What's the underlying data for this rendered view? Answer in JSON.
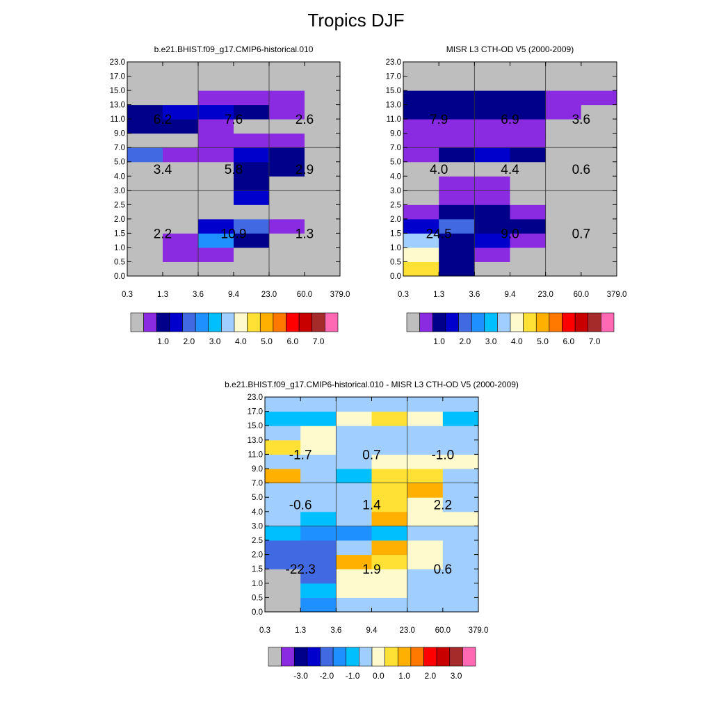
{
  "title": "Tropics DJF",
  "colors": {
    "model": [
      "#bebebe",
      "#8a2be2",
      "#00008b",
      "#0000cd",
      "#4169e1",
      "#1e90ff",
      "#00bfff",
      "#a0cfff",
      "#fffacd",
      "#ffe135",
      "#ffb000",
      "#ff7800",
      "#ff0000",
      "#c80000",
      "#a52a2a",
      "#ff69b4"
    ],
    "diff": [
      "#bebebe",
      "#8a2be2",
      "#00008b",
      "#0000cd",
      "#4169e1",
      "#1e90ff",
      "#00bfff",
      "#a0cfff",
      "#fffacd",
      "#ffe135",
      "#ffb000",
      "#ff7800",
      "#ff0000",
      "#c80000",
      "#a52a2a",
      "#ff69b4"
    ]
  },
  "chart_data": [
    {
      "type": "heatmap",
      "title": "b.e21.BHIST.f09_g17.CMIP6-historical.010",
      "x_ticks": [
        "0.3",
        "1.3",
        "3.6",
        "9.4",
        "23.0",
        "60.0",
        "379.0"
      ],
      "y_ticks": [
        "0.0",
        "0.5",
        "1.0",
        "1.5",
        "2.0",
        "2.5",
        "3.0",
        "4.0",
        "5.0",
        "7.0",
        "9.0",
        "11.0",
        "13.0",
        "15.0",
        "17.0",
        "23.0"
      ],
      "grid": {
        "x_lines": [
          2,
          4
        ],
        "y_lines": [
          6,
          9
        ]
      },
      "cells": [
        [
          0,
          0,
          0,
          0,
          0,
          0
        ],
        [
          0,
          1,
          1,
          0,
          0,
          0
        ],
        [
          0,
          1,
          5,
          2,
          0,
          0
        ],
        [
          0,
          0,
          3,
          4,
          1,
          0
        ],
        [
          0,
          0,
          0,
          0,
          0,
          0
        ],
        [
          0,
          0,
          0,
          3,
          0,
          0
        ],
        [
          0,
          0,
          0,
          2,
          0,
          0
        ],
        [
          0,
          0,
          0,
          2,
          2,
          0
        ],
        [
          4,
          1,
          1,
          3,
          2,
          0
        ],
        [
          0,
          0,
          1,
          1,
          1,
          0
        ],
        [
          2,
          2,
          1,
          0,
          0,
          0
        ],
        [
          2,
          3,
          3,
          2,
          1,
          0
        ],
        [
          0,
          0,
          1,
          1,
          1,
          0
        ],
        [
          0,
          0,
          0,
          0,
          0,
          0
        ],
        [
          0,
          0,
          0,
          0,
          0,
          0
        ]
      ],
      "region_labels": [
        {
          "col": 0,
          "row": 0,
          "text": "2.2"
        },
        {
          "col": 1,
          "row": 0,
          "text": "10.9"
        },
        {
          "col": 2,
          "row": 0,
          "text": "1.3"
        },
        {
          "col": 0,
          "row": 1,
          "text": "3.4"
        },
        {
          "col": 1,
          "row": 1,
          "text": "5.8"
        },
        {
          "col": 2,
          "row": 1,
          "text": "2.9"
        },
        {
          "col": 0,
          "row": 2,
          "text": "6.2"
        },
        {
          "col": 1,
          "row": 2,
          "text": "7.6"
        },
        {
          "col": 2,
          "row": 2,
          "text": "2.6"
        }
      ],
      "colorbar_labels": [
        "1.0",
        "2.0",
        "3.0",
        "4.0",
        "5.0",
        "6.0",
        "7.0"
      ]
    },
    {
      "type": "heatmap",
      "title": "MISR L3 CTH-OD V5 (2000-2009)",
      "x_ticks": [
        "0.3",
        "1.3",
        "3.6",
        "9.4",
        "23.0",
        "60.0",
        "379.0"
      ],
      "y_ticks": [
        "0.0",
        "0.5",
        "1.0",
        "1.5",
        "2.0",
        "2.5",
        "3.0",
        "4.0",
        "5.0",
        "7.0",
        "9.0",
        "11.0",
        "13.0",
        "15.0",
        "17.0",
        "23.0"
      ],
      "grid": {
        "x_lines": [
          2,
          4
        ],
        "y_lines": [
          6,
          9
        ]
      },
      "cells": [
        [
          9,
          2,
          0,
          0,
          0,
          0
        ],
        [
          8,
          2,
          1,
          0,
          0,
          0
        ],
        [
          7,
          2,
          3,
          1,
          0,
          0
        ],
        [
          3,
          4,
          2,
          2,
          0,
          0
        ],
        [
          1,
          2,
          2,
          1,
          0,
          0
        ],
        [
          0,
          1,
          1,
          0,
          0,
          0
        ],
        [
          0,
          1,
          1,
          0,
          0,
          0
        ],
        [
          0,
          0,
          0,
          0,
          0,
          0
        ],
        [
          1,
          2,
          3,
          2,
          0,
          0
        ],
        [
          1,
          1,
          1,
          1,
          0,
          0
        ],
        [
          1,
          1,
          1,
          1,
          0,
          0
        ],
        [
          2,
          2,
          2,
          2,
          1,
          0
        ],
        [
          2,
          2,
          2,
          2,
          1,
          1
        ],
        [
          0,
          0,
          0,
          0,
          0,
          0
        ],
        [
          0,
          0,
          0,
          0,
          0,
          0
        ]
      ],
      "region_labels": [
        {
          "col": 0,
          "row": 0,
          "text": "24.5"
        },
        {
          "col": 1,
          "row": 0,
          "text": "9.0"
        },
        {
          "col": 2,
          "row": 0,
          "text": "0.7"
        },
        {
          "col": 0,
          "row": 1,
          "text": "4.0"
        },
        {
          "col": 1,
          "row": 1,
          "text": "4.4"
        },
        {
          "col": 2,
          "row": 1,
          "text": "0.6"
        },
        {
          "col": 0,
          "row": 2,
          "text": "7.9"
        },
        {
          "col": 1,
          "row": 2,
          "text": "6.9"
        },
        {
          "col": 2,
          "row": 2,
          "text": "3.6"
        }
      ],
      "colorbar_labels": [
        "1.0",
        "2.0",
        "3.0",
        "4.0",
        "5.0",
        "6.0",
        "7.0"
      ]
    },
    {
      "type": "heatmap",
      "title": "b.e21.BHIST.f09_g17.CMIP6-historical.010 - MISR L3 CTH-OD V5 (2000-2009)",
      "x_ticks": [
        "0.3",
        "1.3",
        "3.6",
        "9.4",
        "23.0",
        "60.0",
        "379.0"
      ],
      "y_ticks": [
        "0.0",
        "0.5",
        "1.0",
        "1.5",
        "2.0",
        "2.5",
        "3.0",
        "4.0",
        "5.0",
        "7.0",
        "9.0",
        "11.0",
        "13.0",
        "15.0",
        "17.0",
        "23.0"
      ],
      "grid": {
        "x_lines": [
          2,
          4
        ],
        "y_lines": [
          6,
          9
        ]
      },
      "cells": [
        [
          0,
          5,
          7,
          7,
          7,
          7
        ],
        [
          0,
          6,
          8,
          8,
          7,
          7
        ],
        [
          0,
          4,
          8,
          8,
          7,
          7
        ],
        [
          4,
          4,
          10,
          9,
          8,
          7
        ],
        [
          4,
          4,
          7,
          10,
          8,
          7
        ],
        [
          6,
          5,
          5,
          6,
          7,
          7
        ],
        [
          7,
          6,
          7,
          10,
          8,
          8
        ],
        [
          7,
          7,
          7,
          9,
          8,
          7
        ],
        [
          7,
          7,
          7,
          9,
          10,
          7
        ],
        [
          10,
          7,
          6,
          9,
          9,
          7
        ],
        [
          7,
          7,
          7,
          8,
          8,
          8
        ],
        [
          9,
          8,
          7,
          7,
          7,
          7
        ],
        [
          7,
          8,
          7,
          7,
          7,
          7
        ],
        [
          6,
          6,
          8,
          9,
          8,
          6
        ],
        [
          7,
          7,
          7,
          7,
          7,
          7
        ]
      ],
      "region_labels": [
        {
          "col": 0,
          "row": 0,
          "text": "-22.3"
        },
        {
          "col": 1,
          "row": 0,
          "text": "1.9"
        },
        {
          "col": 2,
          "row": 0,
          "text": "0.6"
        },
        {
          "col": 0,
          "row": 1,
          "text": "-0.6"
        },
        {
          "col": 1,
          "row": 1,
          "text": "1.4"
        },
        {
          "col": 2,
          "row": 1,
          "text": "2.2"
        },
        {
          "col": 0,
          "row": 2,
          "text": "-1.7"
        },
        {
          "col": 1,
          "row": 2,
          "text": "0.7"
        },
        {
          "col": 2,
          "row": 2,
          "text": "-1.0"
        }
      ],
      "colorbar_labels": [
        "-3.0",
        "-2.0",
        "-1.0",
        "0.0",
        "1.0",
        "2.0",
        "3.0"
      ]
    }
  ]
}
